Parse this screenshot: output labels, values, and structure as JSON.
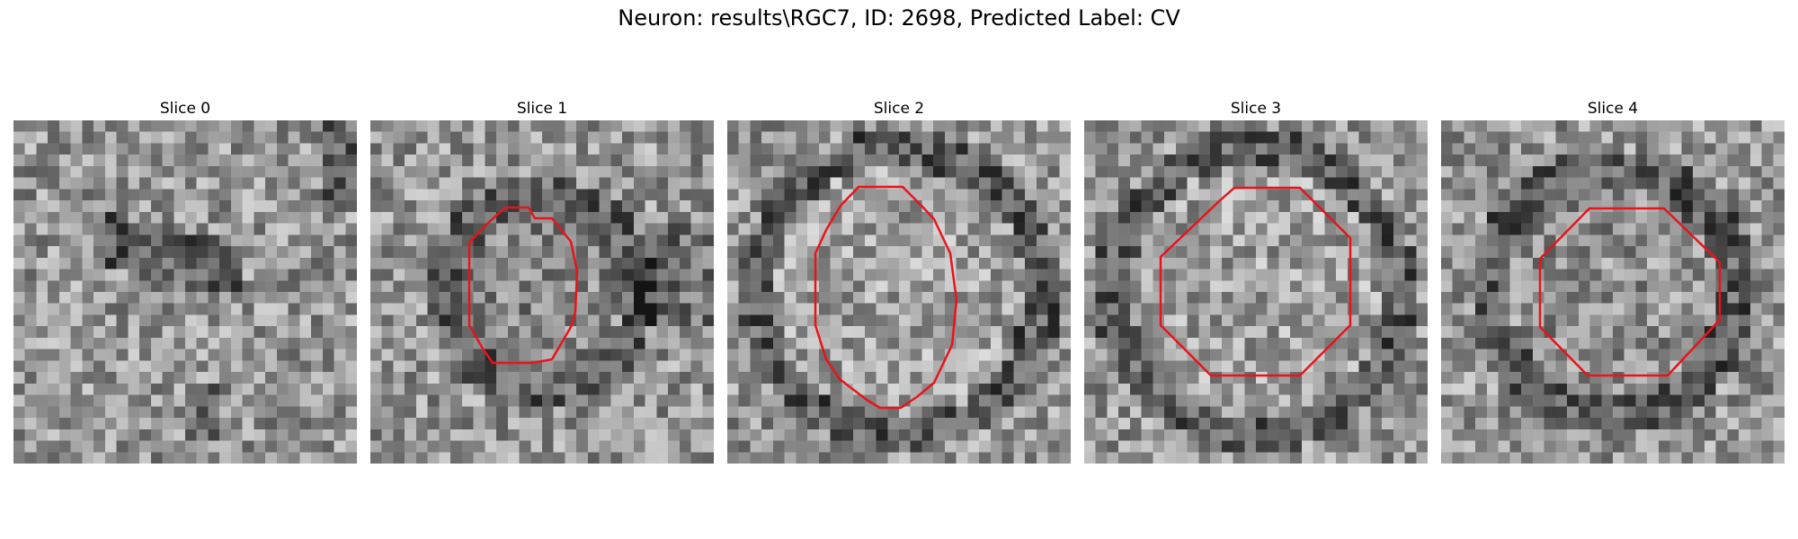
{
  "figure": {
    "title": "Neuron: results\\RGC7, ID: 2698, Predicted Label: CV"
  },
  "panels": [
    {
      "title": "Slice 0",
      "has_contour": false
    },
    {
      "title": "Slice 1",
      "has_contour": true
    },
    {
      "title": "Slice 2",
      "has_contour": true
    },
    {
      "title": "Slice 3",
      "has_contour": true
    },
    {
      "title": "Slice 4",
      "has_contour": true
    }
  ],
  "colors": {
    "contour": "#e8141a"
  }
}
